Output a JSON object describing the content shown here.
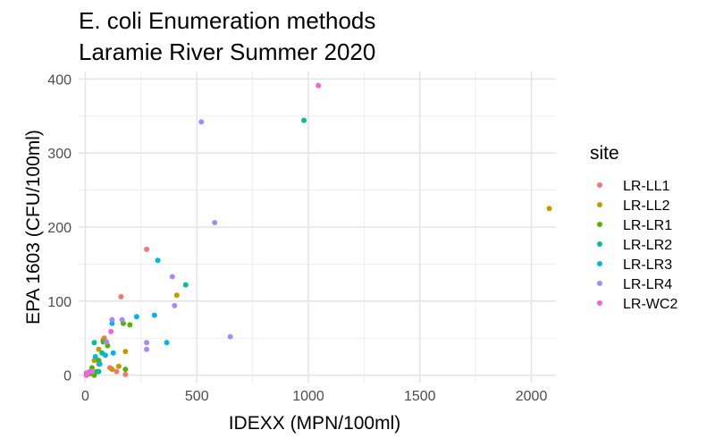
{
  "chart_data": {
    "type": "scatter",
    "title": [
      "E. coli Enumeration methods",
      "Laramie River Summer 2020"
    ],
    "xlabel": "IDEXX (MPN/100ml)",
    "ylabel": "EPA 1603 (CFU/100ml)",
    "xlim": [
      -30,
      2110
    ],
    "ylim": [
      -10,
      410
    ],
    "x_ticks": [
      0,
      500,
      1000,
      1500,
      2000
    ],
    "y_ticks": [
      0,
      100,
      200,
      300,
      400
    ],
    "grid": true,
    "legend_title": "site",
    "legend_position": "right",
    "series": [
      {
        "name": "LR-LL1",
        "color": "#F8766D",
        "points": [
          [
            275,
            170
          ],
          [
            160,
            106
          ],
          [
            85,
            50
          ],
          [
            110,
            10
          ],
          [
            180,
            1
          ],
          [
            5,
            3
          ],
          [
            60,
            15
          ],
          [
            140,
            5
          ]
        ]
      },
      {
        "name": "LR-LL2",
        "color": "#C49A00",
        "points": [
          [
            2080,
            225
          ],
          [
            410,
            108
          ],
          [
            180,
            32
          ],
          [
            60,
            35
          ],
          [
            150,
            12
          ],
          [
            40,
            20
          ],
          [
            80,
            48
          ],
          [
            120,
            8
          ],
          [
            10,
            2
          ],
          [
            5,
            0
          ]
        ]
      },
      {
        "name": "LR-LR1",
        "color": "#53B400",
        "points": [
          [
            200,
            68
          ],
          [
            170,
            70
          ],
          [
            100,
            40
          ],
          [
            60,
            20
          ],
          [
            30,
            10
          ],
          [
            50,
            5
          ],
          [
            20,
            2
          ],
          [
            180,
            8
          ],
          [
            40,
            0
          ],
          [
            80,
            45
          ]
        ]
      },
      {
        "name": "LR-LR2",
        "color": "#00C094",
        "points": [
          [
            980,
            344
          ],
          [
            450,
            122
          ],
          [
            40,
            44
          ],
          [
            60,
            5
          ],
          [
            15,
            3
          ],
          [
            75,
            30
          ]
        ]
      },
      {
        "name": "LR-LR3",
        "color": "#00B6EB",
        "points": [
          [
            325,
            155
          ],
          [
            230,
            79
          ],
          [
            310,
            81
          ],
          [
            365,
            44
          ],
          [
            120,
            70
          ],
          [
            90,
            27
          ],
          [
            45,
            25
          ],
          [
            65,
            15
          ],
          [
            125,
            30
          ],
          [
            5,
            2
          ]
        ]
      },
      {
        "name": "LR-LR4",
        "color": "#A58AFF",
        "points": [
          [
            520,
            342
          ],
          [
            580,
            206
          ],
          [
            390,
            133
          ],
          [
            400,
            94
          ],
          [
            650,
            52
          ],
          [
            275,
            44
          ],
          [
            275,
            35
          ],
          [
            165,
            75
          ],
          [
            120,
            75
          ],
          [
            95,
            45
          ],
          [
            30,
            5
          ]
        ]
      },
      {
        "name": "LR-WC2",
        "color": "#FB61D7",
        "points": [
          [
            1045,
            391
          ],
          [
            115,
            59
          ],
          [
            10,
            3
          ],
          [
            20,
            5
          ],
          [
            5,
            0
          ]
        ]
      }
    ]
  }
}
